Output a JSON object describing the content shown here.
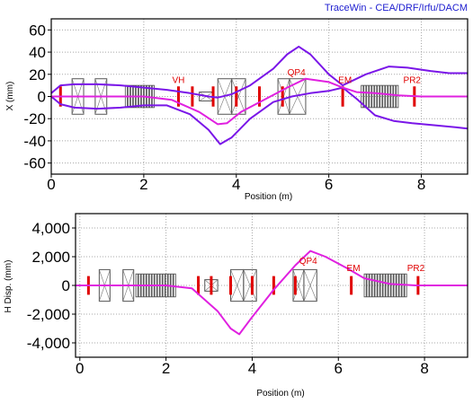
{
  "app_title": "TraceWin - CEA/DRF/Irfu/DACM",
  "colors": {
    "envelope": "#7a16e8",
    "centroid": "#e020e0",
    "element_label": "#e00000",
    "element_marker": "#e00000",
    "grid": "#a8a8a8",
    "title": "#2020d0"
  },
  "chart_data": [
    {
      "type": "line",
      "xlabel": "Position (m)",
      "ylabel": "X (mm)",
      "xlim": [
        0,
        9
      ],
      "ylim": [
        -70,
        70
      ],
      "x_ticks": [
        "0",
        "2",
        "4",
        "6",
        "8"
      ],
      "y_ticks": [
        "60",
        "40",
        "20",
        "0",
        "-20",
        "-40",
        "-60"
      ],
      "grid": true,
      "element_labels": [
        {
          "text": "VH",
          "x": 2.75,
          "y": 12
        },
        {
          "text": "QP4",
          "x": 5.3,
          "y": 19
        },
        {
          "text": "EM",
          "x": 6.35,
          "y": 12
        },
        {
          "text": "PR2",
          "x": 7.8,
          "y": 12
        }
      ],
      "series": [
        {
          "role": "upper envelope",
          "x": [
            0,
            0.2,
            0.5,
            1,
            1.5,
            2,
            2.5,
            3,
            3.4,
            3.6,
            3.9,
            4.3,
            4.8,
            5.1,
            5.35,
            5.6,
            6,
            6.3,
            6.8,
            7.3,
            7.7,
            8.2,
            8.6,
            9
          ],
          "y": [
            3,
            10,
            11,
            11,
            10,
            8,
            6,
            3,
            0,
            -1,
            2,
            10,
            25,
            38,
            45,
            38,
            20,
            10,
            20,
            27,
            26,
            23,
            21,
            21
          ]
        },
        {
          "role": "lower envelope",
          "x": [
            0,
            0.2,
            0.5,
            1,
            1.5,
            2,
            2.5,
            3,
            3.4,
            3.65,
            3.9,
            4.3,
            4.8,
            5.2,
            5.6,
            6,
            6.3,
            6.6,
            7,
            7.4,
            7.8,
            8.3,
            8.8,
            9
          ],
          "y": [
            0,
            -7,
            -10,
            -11,
            -10,
            -8,
            -8,
            -16,
            -30,
            -43,
            -37,
            -20,
            -5,
            0,
            3,
            5,
            8,
            -2,
            -17,
            -22,
            -24,
            -26,
            -28,
            -29
          ]
        },
        {
          "role": "centroid",
          "x": [
            0,
            0.2,
            1,
            2,
            2.6,
            3.2,
            3.6,
            3.8,
            4.1,
            4.6,
            5.1,
            5.5,
            6,
            6.3,
            6.6,
            7,
            7.5,
            8,
            8.5,
            9
          ],
          "y": [
            0,
            0,
            0,
            0,
            -3,
            -14,
            -25,
            -24,
            -14,
            -3,
            8,
            16,
            13,
            8,
            4,
            3,
            1,
            0,
            0,
            0
          ]
        }
      ]
    },
    {
      "type": "line",
      "xlabel": "Position (m)",
      "ylabel": "H Disp. (mm)",
      "xlim": [
        -0.1,
        9
      ],
      "ylim": [
        -5000,
        5000
      ],
      "x_ticks": [
        "0",
        "2",
        "4",
        "6",
        "8"
      ],
      "y_ticks": [
        "4,000",
        "2,000",
        "0",
        "-2,000",
        "-4,000"
      ],
      "grid": true,
      "element_labels": [
        {
          "text": "QP4",
          "x": 5.3,
          "y": 1500
        },
        {
          "text": "EM",
          "x": 6.35,
          "y": 1000
        },
        {
          "text": "PR2",
          "x": 7.8,
          "y": 1000
        }
      ],
      "series": [
        {
          "role": "dispersion",
          "x": [
            -0.1,
            0.2,
            1,
            2,
            2.6,
            3.2,
            3.5,
            3.7,
            4.0,
            4.5,
            5.0,
            5.35,
            5.7,
            6.2,
            6.6,
            7.2,
            7.8,
            8.2,
            9
          ],
          "y": [
            0,
            0,
            0,
            0,
            -200,
            -1800,
            -3000,
            -3400,
            -2200,
            -300,
            1400,
            2400,
            2000,
            1200,
            500,
            100,
            0,
            0,
            0
          ]
        }
      ]
    }
  ]
}
